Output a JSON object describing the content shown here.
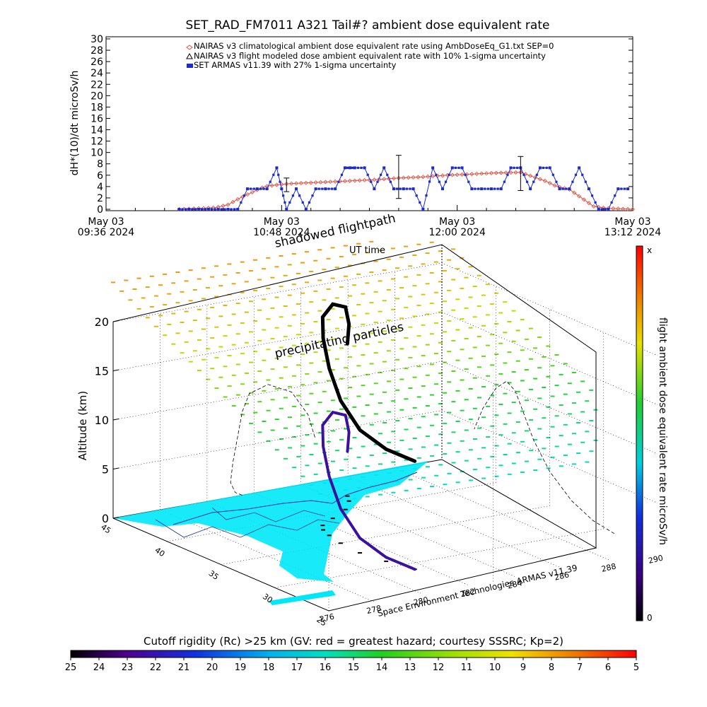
{
  "chart_data": [
    {
      "type": "line",
      "title": "SET_RAD_FM7011  A321 Tail#? ambient dose equivalent rate",
      "ylabel": "dH*(10)/dt microSv/h",
      "ylim": [
        0,
        30
      ],
      "yticks": [
        "0",
        "2",
        "4",
        "6",
        "8",
        "10",
        "12",
        "14",
        "16",
        "18",
        "20",
        "22",
        "24",
        "26",
        "28",
        "30"
      ],
      "xlim": [
        0,
        216
      ],
      "xticks": [
        {
          "t": 0,
          "date": "May 03",
          "time": "09:36 2024"
        },
        {
          "t": 72,
          "date": "May 03",
          "time": "10:48 2024"
        },
        {
          "t": 144,
          "date": "May 03",
          "time": "12:00 2024"
        },
        {
          "t": 216,
          "date": "May 03",
          "time": "13:12 2024"
        }
      ],
      "legend_position": "top-center",
      "series": [
        {
          "name": "NAIRAS v3 climatological ambient dose equivalent rate using AmbDoseEq_G1.txt SEP=0",
          "color": "#e05040",
          "marker": "diamond",
          "x": [
            30,
            45,
            50,
            55,
            60,
            65,
            70,
            75,
            80,
            85,
            90,
            100,
            110,
            120,
            130,
            140,
            150,
            160,
            170,
            180,
            185,
            190,
            195,
            200,
            205,
            210,
            216
          ],
          "y": [
            0,
            0.3,
            0.8,
            2.0,
            3.0,
            4.0,
            4.3,
            4.5,
            4.6,
            4.7,
            4.8,
            5.0,
            5.2,
            5.5,
            5.7,
            6.0,
            6.2,
            6.4,
            6.5,
            5.0,
            4.0,
            3.5,
            2.0,
            0.5,
            0.2,
            0.1,
            0
          ]
        },
        {
          "name": "NAIRAS v3 flight modeled dose ambient equivalent rate with 10% 1-sigma uncertainty",
          "color": "#000000",
          "marker": "triangle",
          "x": [],
          "y": []
        },
        {
          "name": "SET ARMAS v11.39 with 27% 1-sigma uncertainty",
          "color": "#1a2bd0",
          "marker": "square",
          "x": [
            30,
            34,
            38,
            42,
            46,
            50,
            54,
            58,
            62,
            66,
            70,
            72,
            74,
            78,
            82,
            86,
            90,
            94,
            98,
            100,
            102,
            106,
            110,
            114,
            118,
            122,
            126,
            130,
            134,
            138,
            142,
            146,
            150,
            154,
            158,
            162,
            166,
            170,
            174,
            178,
            182,
            186,
            190,
            194,
            198,
            202,
            206,
            210,
            214
          ],
          "y": [
            0,
            0,
            0,
            0,
            0,
            0,
            0,
            3.6,
            3.6,
            3.6,
            7.3,
            3.6,
            0,
            3.6,
            0,
            3.6,
            3.6,
            3.6,
            7.3,
            7.3,
            7.3,
            7.3,
            3.6,
            7.3,
            3.6,
            3.6,
            3.6,
            0,
            7.3,
            3.6,
            7.3,
            7.3,
            3.6,
            3.6,
            3.6,
            3.6,
            7.3,
            7.3,
            3.6,
            7.3,
            7.3,
            3.6,
            3.6,
            7.3,
            3.6,
            0,
            0,
            3.6,
            3.6
          ]
        }
      ],
      "error_bars": [
        {
          "t": 74,
          "y": 4.3,
          "err": 1.2
        },
        {
          "t": 120,
          "y": 5.7,
          "err": 3.8
        },
        {
          "t": 170,
          "y": 6.3,
          "err": 3.0
        }
      ]
    },
    {
      "type": "3d-trajectory",
      "zlabel": "Altitude (km)",
      "zlim": [
        0,
        20
      ],
      "zticks": [
        "0",
        "5",
        "10",
        "15",
        "20"
      ],
      "latitude_ticks": [
        "45",
        "40",
        "35",
        "30",
        "25"
      ],
      "longitude_ticks": [
        "276",
        "278",
        "280",
        "282",
        "284",
        "286",
        "288",
        "290"
      ],
      "annotations": {
        "shadow": "shadowed flightpath",
        "ut": "UT time",
        "precip": "precipitating particles",
        "credit": "Space Environment Technologies ARMAS v11.39"
      },
      "colorbar_label": "flight ambient dose equivalent rate microSv/h",
      "colorbar_max": "x",
      "colorbar_min": "0",
      "flight_track": [
        {
          "lon": 281.5,
          "lat": 29,
          "alt": 0
        },
        {
          "lon": 281.2,
          "lat": 31,
          "alt": 0.4
        },
        {
          "lon": 281.0,
          "lat": 33,
          "alt": 1.5
        },
        {
          "lon": 281.1,
          "lat": 35,
          "alt": 3.5
        },
        {
          "lon": 281.3,
          "lat": 36.5,
          "alt": 6.0
        },
        {
          "lon": 281.5,
          "lat": 37.5,
          "alt": 8.5
        },
        {
          "lon": 281.8,
          "lat": 38.2,
          "alt": 10.2
        },
        {
          "lon": 282.6,
          "lat": 39.0,
          "alt": 10.8
        },
        {
          "lon": 283.6,
          "lat": 40.0,
          "alt": 9.6
        },
        {
          "lon": 284.3,
          "lat": 41.2,
          "alt": 7.0
        },
        {
          "lon": 284.6,
          "lat": 42.0,
          "alt": 4.5
        }
      ]
    },
    {
      "type": "colorbar",
      "title": "Cutoff rigidity (Rc) >25 km (GV: red = greatest hazard; courtesy SSSRC; Kp=2)",
      "ticks": [
        "25",
        "24",
        "23",
        "22",
        "21",
        "20",
        "19",
        "18",
        "17",
        "16",
        "15",
        "14",
        "13",
        "12",
        "11",
        "10",
        "9",
        "8",
        "7",
        "6",
        "5"
      ]
    }
  ]
}
